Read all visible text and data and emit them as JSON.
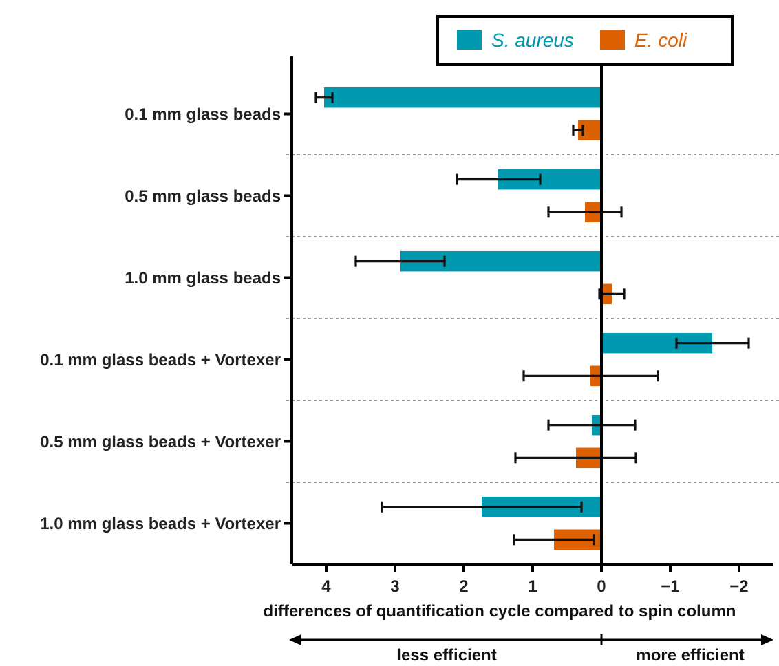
{
  "chart_data": {
    "type": "bar",
    "orientation": "horizontal",
    "categories": [
      "0.1 mm glass beads",
      "0.5 mm glass beads",
      "1.0 mm glass beads",
      "0.1 mm glass beads + Vortexer",
      "0.5 mm glass beads + Vortexer",
      "1.0 mm glass beads + Vortexer"
    ],
    "series": [
      {
        "name": "S. aureus",
        "color": "#0099b0",
        "values": [
          4.03,
          1.5,
          2.93,
          -1.61,
          0.14,
          1.74
        ],
        "errors": [
          [
            3.91,
            4.15
          ],
          [
            0.89,
            2.1
          ],
          [
            2.28,
            3.57
          ],
          [
            -2.14,
            -1.09
          ],
          [
            -0.49,
            0.77
          ],
          [
            0.29,
            3.19
          ]
        ]
      },
      {
        "name": "E. coli",
        "color": "#dd6100",
        "values": [
          0.34,
          0.24,
          -0.15,
          0.16,
          0.37,
          0.69
        ],
        "errors": [
          [
            0.27,
            0.41
          ],
          [
            -0.29,
            0.77
          ],
          [
            -0.33,
            0.03
          ],
          [
            -0.82,
            1.13
          ],
          [
            -0.5,
            1.25
          ],
          [
            0.11,
            1.27
          ]
        ]
      }
    ],
    "xlim": [
      4.5,
      -2.5
    ],
    "xticks": [
      4,
      3,
      2,
      1,
      0,
      {
        "value": -1,
        "label": "−1"
      },
      {
        "value": -2,
        "label": "−2"
      }
    ],
    "xlabel": "differences of quantification cycle compared to spin column",
    "legend": "top right",
    "annotations": [
      "less efficient",
      "more efficient"
    ]
  }
}
